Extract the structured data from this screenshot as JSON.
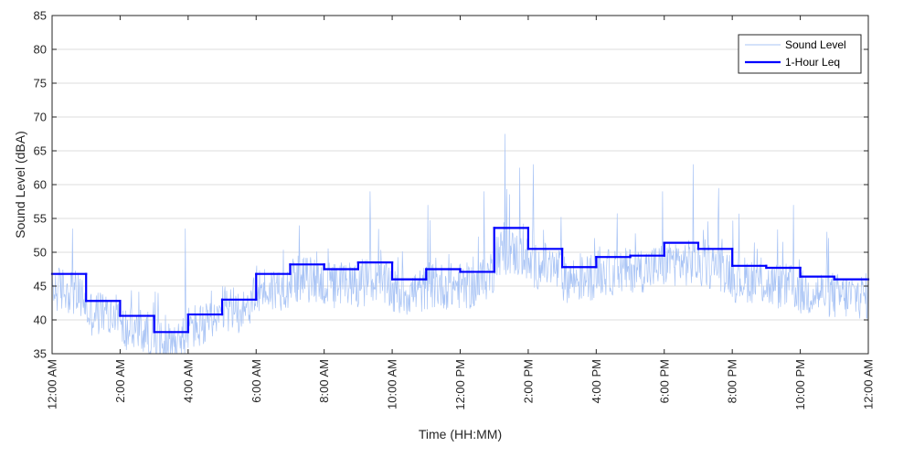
{
  "chart_data": {
    "type": "line",
    "title": "",
    "xlabel": "Time (HH:MM)",
    "ylabel": "Sound Level (dBA)",
    "ylim": [
      35,
      85
    ],
    "yticks": [
      35,
      40,
      45,
      50,
      55,
      60,
      65,
      70,
      75,
      80,
      85
    ],
    "xlim_hours": [
      0,
      24
    ],
    "xticks": [
      {
        "hour": 0,
        "label": "12:00 AM"
      },
      {
        "hour": 2,
        "label": "2:00 AM"
      },
      {
        "hour": 4,
        "label": "4:00 AM"
      },
      {
        "hour": 6,
        "label": "6:00 AM"
      },
      {
        "hour": 8,
        "label": "8:00 AM"
      },
      {
        "hour": 10,
        "label": "10:00 AM"
      },
      {
        "hour": 12,
        "label": "12:00 PM"
      },
      {
        "hour": 14,
        "label": "2:00 PM"
      },
      {
        "hour": 16,
        "label": "4:00 PM"
      },
      {
        "hour": 18,
        "label": "6:00 PM"
      },
      {
        "hour": 20,
        "label": "8:00 PM"
      },
      {
        "hour": 22,
        "label": "10:00 PM"
      },
      {
        "hour": 24,
        "label": "12:00 AM"
      }
    ],
    "grid": "horizontal",
    "legend_position": "top-right",
    "series": [
      {
        "name": "Sound Level",
        "style": "thin-line",
        "color": "#a9c4f5",
        "hourly_mean": [
          44.5,
          41,
          38.5,
          36.5,
          39,
          41.5,
          44.5,
          46,
          45,
          45.5,
          44,
          45,
          45,
          50,
          48,
          46,
          47,
          47.5,
          48.5,
          48,
          46,
          45,
          44,
          43.5
        ],
        "peaks": [
          {
            "hour": 13.32,
            "value": 67.5
          },
          {
            "hour": 13.75,
            "value": 62.5
          },
          {
            "hour": 14.15,
            "value": 63
          },
          {
            "hour": 18.85,
            "value": 63
          },
          {
            "hour": 9.35,
            "value": 59
          },
          {
            "hour": 11.05,
            "value": 57
          },
          {
            "hour": 12.7,
            "value": 59
          },
          {
            "hour": 19.6,
            "value": 59.5
          },
          {
            "hour": 17.95,
            "value": 59
          },
          {
            "hour": 21.8,
            "value": 57
          },
          {
            "hour": 3.92,
            "value": 53.5
          },
          {
            "hour": 0.6,
            "value": 53.5
          }
        ]
      },
      {
        "name": "1-Hour Leq",
        "style": "step",
        "color": "#0000ff",
        "hours": [
          0,
          1,
          2,
          3,
          4,
          5,
          6,
          7,
          8,
          9,
          10,
          11,
          12,
          13,
          14,
          15,
          16,
          17,
          18,
          19,
          20,
          21,
          22,
          23
        ],
        "values": [
          46.8,
          42.8,
          40.6,
          38.2,
          40.8,
          43.0,
          46.8,
          48.2,
          47.5,
          48.5,
          46.0,
          47.5,
          47.1,
          53.6,
          50.5,
          47.8,
          49.3,
          49.5,
          51.4,
          50.5,
          48.0,
          47.7,
          46.4,
          46.0
        ]
      }
    ]
  }
}
